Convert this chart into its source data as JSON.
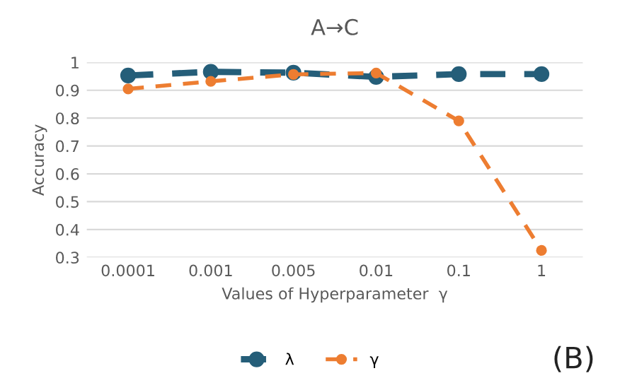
{
  "chart_data": {
    "type": "line",
    "title": "A→C",
    "xlabel": "Values of Hyperparameter  γ",
    "ylabel": "Accuracy",
    "categories": [
      "0.0001",
      "0.001",
      "0.005",
      "0.01",
      "0.1",
      "1"
    ],
    "series": [
      {
        "name": "λ",
        "color": "#255e79",
        "values": [
          0.953,
          0.966,
          0.963,
          0.948,
          0.958,
          0.958
        ]
      },
      {
        "name": "γ",
        "color": "#ed7d31",
        "values": [
          0.905,
          0.932,
          0.957,
          0.962,
          0.79,
          0.325
        ]
      }
    ],
    "ylim": [
      0.3,
      1
    ],
    "yticks": [
      0.3,
      0.4,
      0.5,
      0.6,
      0.7,
      0.8,
      0.9,
      1
    ],
    "grid": "y",
    "legend": "bottom",
    "marker": "circle",
    "line_style": "dashed",
    "annotations": [
      "(B)"
    ]
  }
}
